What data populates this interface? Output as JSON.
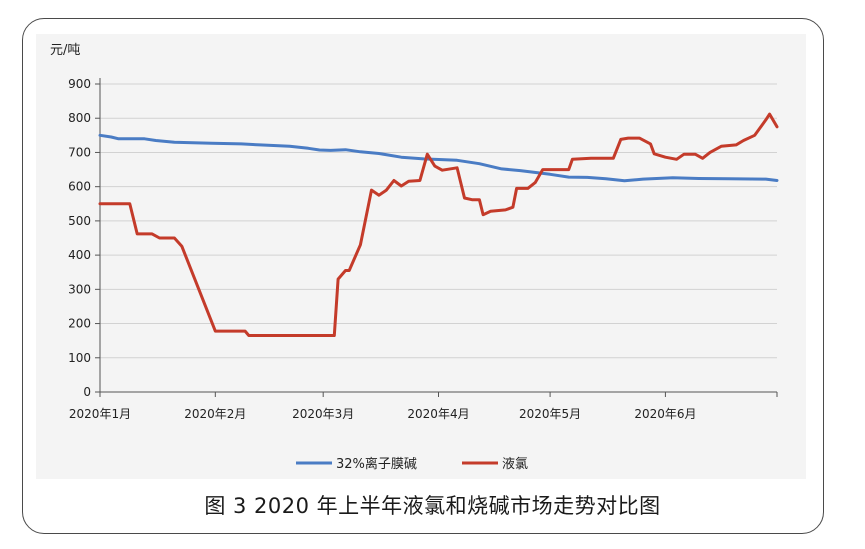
{
  "figure": {
    "caption": "图 3  2020 年上半年液氯和烧碱市场走势对比图"
  },
  "chart_data": {
    "type": "line",
    "ylabel": "元/吨",
    "ylim": [
      0,
      900
    ],
    "yticks": [
      0,
      100,
      200,
      300,
      400,
      500,
      600,
      700,
      800,
      900
    ],
    "xlim": [
      "2020-01-01",
      "2020-07-01"
    ],
    "xticks": [
      {
        "label": "2020年1月",
        "date": "2020-01-01"
      },
      {
        "label": "2020年2月",
        "date": "2020-02-01"
      },
      {
        "label": "2020年3月",
        "date": "2020-03-01"
      },
      {
        "label": "2020年4月",
        "date": "2020-04-01"
      },
      {
        "label": "2020年5月",
        "date": "2020-05-01"
      },
      {
        "label": "2020年6月",
        "date": "2020-06-01"
      }
    ],
    "grid": "horizontal",
    "legend_position": "bottom",
    "series": [
      {
        "name": "32%离子膜碱",
        "color": "#4a7cc4",
        "points": [
          [
            "2020-01-01",
            750
          ],
          [
            "2020-01-04",
            745
          ],
          [
            "2020-01-06",
            740
          ],
          [
            "2020-01-13",
            740
          ],
          [
            "2020-01-16",
            735
          ],
          [
            "2020-01-21",
            730
          ],
          [
            "2020-01-31",
            727
          ],
          [
            "2020-02-08",
            725
          ],
          [
            "2020-02-13",
            722
          ],
          [
            "2020-02-21",
            718
          ],
          [
            "2020-02-26",
            712
          ],
          [
            "2020-02-29",
            707
          ],
          [
            "2020-03-03",
            706
          ],
          [
            "2020-03-07",
            708
          ],
          [
            "2020-03-11",
            702
          ],
          [
            "2020-03-16",
            697
          ],
          [
            "2020-03-22",
            686
          ],
          [
            "2020-03-28",
            681
          ],
          [
            "2020-04-06",
            677
          ],
          [
            "2020-04-12",
            667
          ],
          [
            "2020-04-18",
            652
          ],
          [
            "2020-04-23",
            647
          ],
          [
            "2020-05-01",
            636
          ],
          [
            "2020-05-06",
            628
          ],
          [
            "2020-05-11",
            627
          ],
          [
            "2020-05-16",
            623
          ],
          [
            "2020-05-21",
            617
          ],
          [
            "2020-05-26",
            622
          ],
          [
            "2020-06-03",
            626
          ],
          [
            "2020-06-10",
            624
          ],
          [
            "2020-06-18",
            623
          ],
          [
            "2020-06-28",
            622
          ],
          [
            "2020-07-01",
            618
          ]
        ]
      },
      {
        "name": "液氯",
        "color": "#c43b2a",
        "points": [
          [
            "2020-01-01",
            550
          ],
          [
            "2020-01-09",
            550
          ],
          [
            "2020-01-11",
            462
          ],
          [
            "2020-01-15",
            462
          ],
          [
            "2020-01-17",
            450
          ],
          [
            "2020-01-21",
            450
          ],
          [
            "2020-01-23",
            426
          ],
          [
            "2020-02-01",
            178
          ],
          [
            "2020-02-09",
            178
          ],
          [
            "2020-02-10",
            165
          ],
          [
            "2020-02-18",
            165
          ],
          [
            "2020-03-04",
            165
          ],
          [
            "2020-03-05",
            330
          ],
          [
            "2020-03-07",
            355
          ],
          [
            "2020-03-08",
            355
          ],
          [
            "2020-03-11",
            430
          ],
          [
            "2020-03-14",
            590
          ],
          [
            "2020-03-16",
            575
          ],
          [
            "2020-03-18",
            590
          ],
          [
            "2020-03-20",
            618
          ],
          [
            "2020-03-22",
            602
          ],
          [
            "2020-03-24",
            616
          ],
          [
            "2020-03-27",
            618
          ],
          [
            "2020-03-29",
            695
          ],
          [
            "2020-03-31",
            660
          ],
          [
            "2020-04-02",
            648
          ],
          [
            "2020-04-06",
            655
          ],
          [
            "2020-04-08",
            567
          ],
          [
            "2020-04-10",
            562
          ],
          [
            "2020-04-12",
            562
          ],
          [
            "2020-04-13",
            518
          ],
          [
            "2020-04-15",
            528
          ],
          [
            "2020-04-19",
            532
          ],
          [
            "2020-04-21",
            540
          ],
          [
            "2020-04-22",
            595
          ],
          [
            "2020-04-25",
            595
          ],
          [
            "2020-04-27",
            612
          ],
          [
            "2020-04-29",
            650
          ],
          [
            "2020-04-30",
            650
          ],
          [
            "2020-05-06",
            650
          ],
          [
            "2020-05-07",
            680
          ],
          [
            "2020-05-12",
            683
          ],
          [
            "2020-05-18",
            683
          ],
          [
            "2020-05-20",
            738
          ],
          [
            "2020-05-22",
            742
          ],
          [
            "2020-05-25",
            742
          ],
          [
            "2020-05-28",
            725
          ],
          [
            "2020-05-29",
            696
          ],
          [
            "2020-06-01",
            686
          ],
          [
            "2020-06-04",
            680
          ],
          [
            "2020-06-06",
            695
          ],
          [
            "2020-06-09",
            695
          ],
          [
            "2020-06-11",
            683
          ],
          [
            "2020-06-13",
            700
          ],
          [
            "2020-06-16",
            718
          ],
          [
            "2020-06-20",
            722
          ],
          [
            "2020-06-22",
            735
          ],
          [
            "2020-06-25",
            750
          ],
          [
            "2020-06-28",
            795
          ],
          [
            "2020-06-29",
            812
          ],
          [
            "2020-07-01",
            775
          ]
        ]
      }
    ]
  }
}
